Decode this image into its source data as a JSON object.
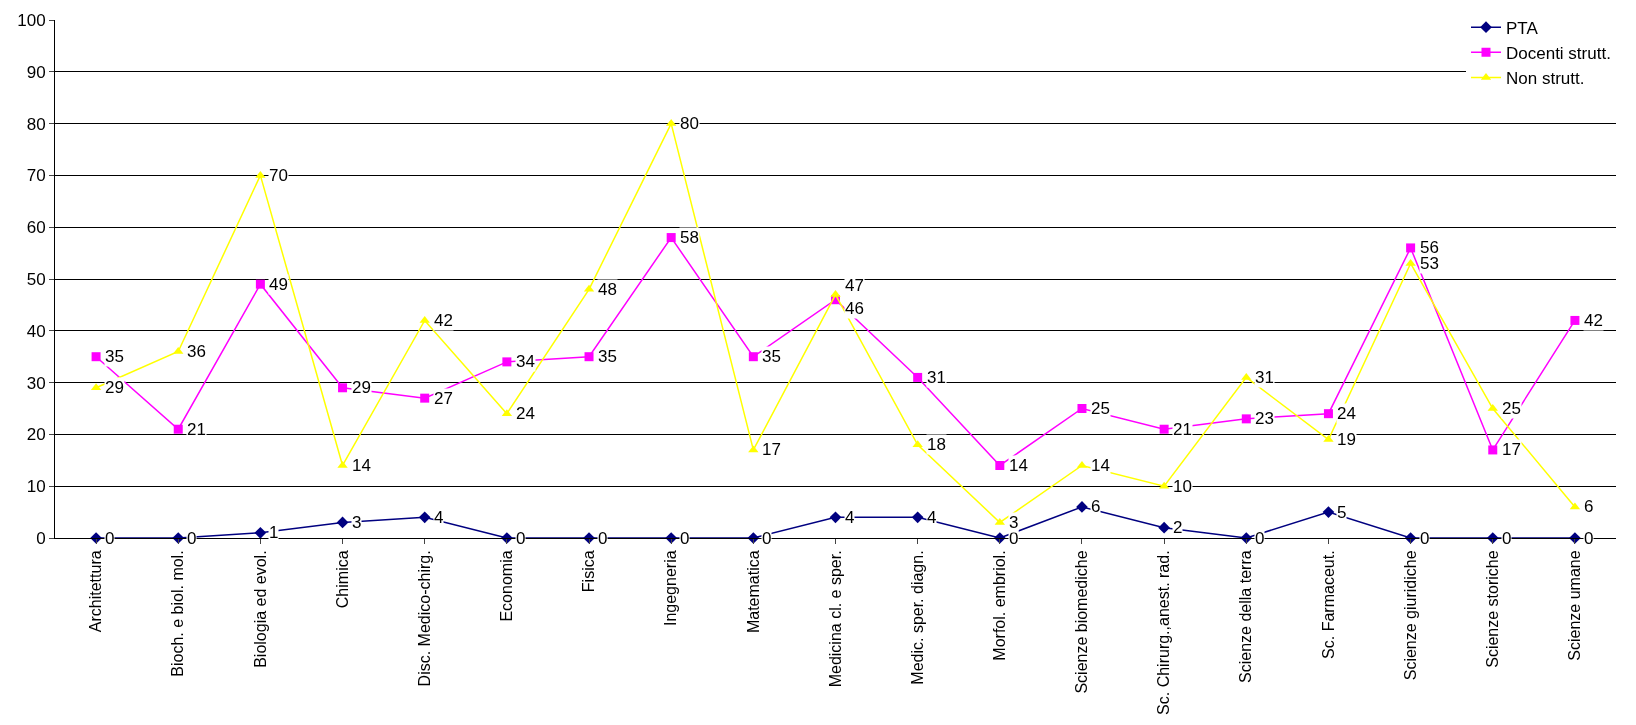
{
  "chart_data": {
    "type": "line",
    "categories": [
      "Architettura",
      "Bioch. e biol. mol.",
      "Biologia ed evol.",
      "Chimica",
      "Disc. Medico-chirg.",
      "Economia",
      "Fisica",
      "Ingegneria",
      "Matematica",
      "Medicina cl. e sper.",
      "Medic. sper. diagn.",
      "Morfol. embriol.",
      "Scienze biomediche",
      "Sc. Chirurg.,anest. rad.",
      "Scienze della terra",
      "Sc. Farmaceut.",
      "Scienze giuridiche",
      "Scienze storiche",
      "Scienze umane"
    ],
    "series": [
      {
        "name": "PTA",
        "color": "#000080",
        "marker": "diamond",
        "values": [
          0,
          0,
          1,
          3,
          4,
          0,
          0,
          0,
          0,
          4,
          4,
          0,
          6,
          2,
          0,
          5,
          0,
          0,
          0
        ]
      },
      {
        "name": "Docenti strutt.",
        "color": "#ff00ff",
        "marker": "square",
        "values": [
          35,
          21,
          49,
          29,
          27,
          34,
          35,
          58,
          35,
          46,
          31,
          14,
          25,
          21,
          23,
          24,
          56,
          17,
          42
        ]
      },
      {
        "name": "Non strutt.",
        "color": "#ffff00",
        "marker": "triangle",
        "values": [
          29,
          36,
          70,
          14,
          42,
          24,
          48,
          80,
          17,
          47,
          18,
          3,
          14,
          10,
          31,
          19,
          53,
          25,
          6
        ]
      }
    ],
    "ylim": [
      0,
      100
    ],
    "yticks": [
      0,
      10,
      20,
      30,
      40,
      50,
      60,
      70,
      80,
      90,
      100
    ],
    "grid": "y",
    "legend": "top right",
    "data_labels": true,
    "line_style": "solid"
  }
}
